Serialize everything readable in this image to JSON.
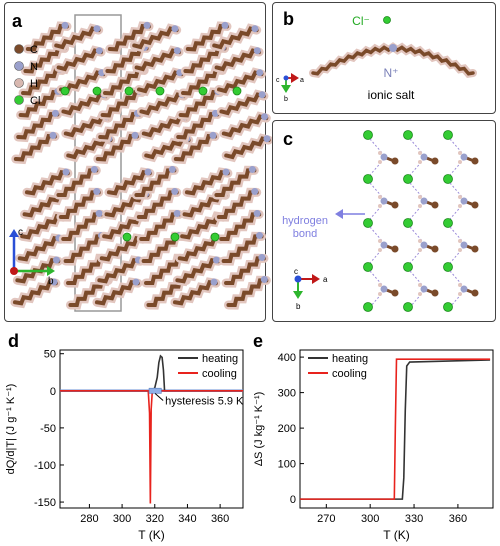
{
  "panel_a": {
    "label": "a",
    "legend": [
      {
        "symbol": "C",
        "color": "#7a4a2a"
      },
      {
        "symbol": "N",
        "color": "#9aa0cc"
      },
      {
        "symbol": "H",
        "color": "#d8b8b0"
      },
      {
        "symbol": "Cl",
        "color": "#33cc33"
      }
    ],
    "axes": {
      "c": "c",
      "b": "b"
    }
  },
  "panel_b": {
    "label": "b",
    "anion": "Cl⁻",
    "cation": "N⁺",
    "caption": "ionic salt",
    "axes": {
      "c": "c",
      "a": "a",
      "b": "b"
    }
  },
  "panel_c": {
    "label": "c",
    "annotation": [
      "hydrogen",
      "bond"
    ],
    "axes": {
      "c": "c",
      "a": "a",
      "b": "b"
    }
  },
  "chart_data": [
    {
      "panel": "d",
      "type": "line",
      "xlabel": "T (K)",
      "ylabel": "dQ/d|T| (J g⁻¹ K⁻¹)",
      "xlim": [
        262,
        374
      ],
      "ylim": [
        -158,
        55
      ],
      "xticks": [
        280,
        300,
        320,
        340,
        360
      ],
      "yticks": [
        50,
        0,
        -50,
        -100,
        -150
      ],
      "legend_position": "top-right",
      "annotation": "hysteresis 5.9 K",
      "series": [
        {
          "name": "heating",
          "color": "#333333",
          "x": [
            262,
            318,
            320,
            321.5,
            322.5,
            323.5,
            324.5,
            325.3,
            326,
            374
          ],
          "y": [
            0,
            0,
            4,
            18,
            38,
            47,
            45,
            28,
            0,
            0
          ]
        },
        {
          "name": "cooling",
          "color": "#e8231d",
          "x": [
            262,
            316,
            316.8,
            317.3,
            317.8,
            318.5,
            374
          ],
          "y": [
            0,
            0,
            -30,
            -152,
            -25,
            0,
            0
          ]
        }
      ]
    },
    {
      "panel": "e",
      "type": "line",
      "xlabel": "T (K)",
      "ylabel": "ΔS (J kg⁻¹ K⁻¹)",
      "xlim": [
        252,
        384
      ],
      "ylim": [
        -25,
        420
      ],
      "xticks": [
        270,
        300,
        330,
        360
      ],
      "yticks": [
        0,
        100,
        200,
        300,
        400
      ],
      "legend_position": "top-left",
      "series": [
        {
          "name": "heating",
          "color": "#333333",
          "x": [
            252,
            322,
            323,
            324,
            325,
            327,
            382
          ],
          "y": [
            0,
            0,
            60,
            250,
            375,
            386,
            392
          ]
        },
        {
          "name": "cooling",
          "color": "#e8231d",
          "x": [
            252,
            316.5,
            317.2,
            318,
            382
          ],
          "y": [
            0,
            0,
            200,
            394,
            394
          ]
        }
      ]
    }
  ]
}
